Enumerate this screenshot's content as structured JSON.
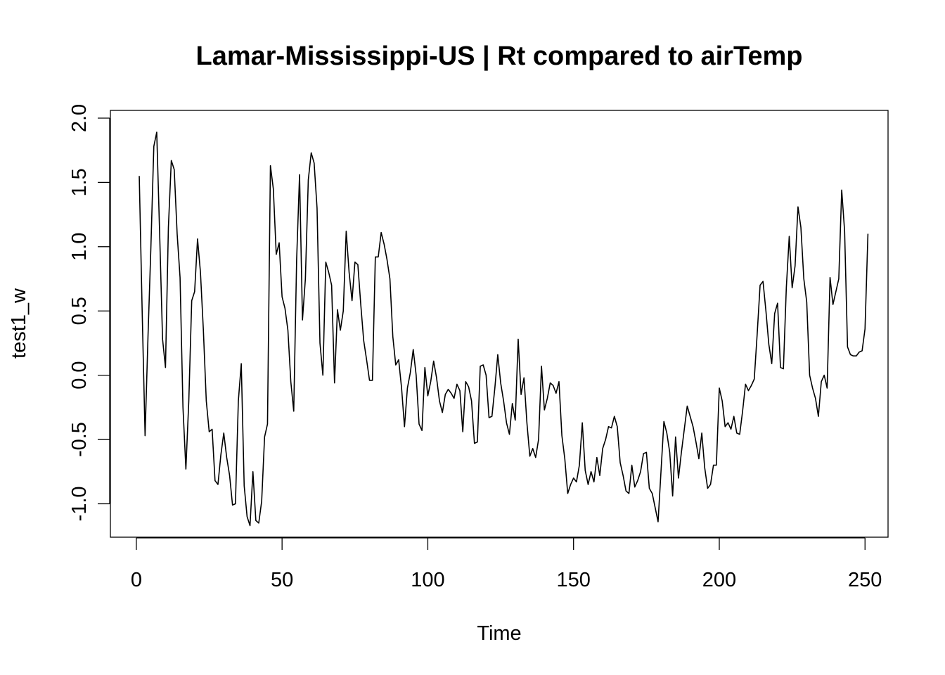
{
  "chart_data": {
    "type": "line",
    "title": "Lamar-Mississippi-US | Rt compared to airTemp",
    "xlabel": "Time",
    "ylabel": "test1_w",
    "xlim": [
      -8.9,
      257.9
    ],
    "ylim": [
      -1.26,
      2.06
    ],
    "x_ticks": [
      0,
      50,
      100,
      150,
      200,
      250
    ],
    "x_tick_labels": [
      "0",
      "50",
      "100",
      "150",
      "200",
      "250"
    ],
    "y_ticks": [
      -1.0,
      -0.5,
      0.0,
      0.5,
      1.0,
      1.5,
      2.0
    ],
    "y_tick_labels": [
      "-1.0",
      "-0.5",
      "0.0",
      "0.5",
      "1.0",
      "1.5",
      "2.0"
    ],
    "grid": false,
    "line_color": "#000000",
    "x_start": 1,
    "series": [
      {
        "values": [
          1.55,
          0.5,
          -0.47,
          0.3,
          1.0,
          1.78,
          1.89,
          1.1,
          0.28,
          0.06,
          1.15,
          1.67,
          1.6,
          1.1,
          0.76,
          -0.25,
          -0.73,
          -0.2,
          0.58,
          0.65,
          1.06,
          0.8,
          0.35,
          -0.2,
          -0.44,
          -0.42,
          -0.82,
          -0.85,
          -0.62,
          -0.45,
          -0.64,
          -0.78,
          -1.01,
          -1.0,
          -0.2,
          0.09,
          -0.86,
          -1.1,
          -1.17,
          -0.75,
          -1.13,
          -1.15,
          -0.98,
          -0.48,
          -0.38,
          1.63,
          1.45,
          0.94,
          1.03,
          0.61,
          0.52,
          0.35,
          -0.05,
          -0.28,
          0.9,
          1.56,
          0.43,
          0.75,
          1.52,
          1.73,
          1.65,
          1.3,
          0.25,
          0.0,
          0.88,
          0.8,
          0.7,
          -0.06,
          0.51,
          0.35,
          0.5,
          1.12,
          0.8,
          0.58,
          0.88,
          0.86,
          0.55,
          0.27,
          0.12,
          -0.04,
          -0.04,
          0.92,
          0.92,
          1.11,
          1.02,
          0.9,
          0.75,
          0.3,
          0.08,
          0.12,
          -0.1,
          -0.4,
          -0.1,
          0.02,
          0.2,
          0.0,
          -0.38,
          -0.43,
          0.06,
          -0.16,
          -0.05,
          0.11,
          -0.02,
          -0.2,
          -0.29,
          -0.15,
          -0.11,
          -0.14,
          -0.18,
          -0.07,
          -0.12,
          -0.44,
          -0.05,
          -0.09,
          -0.2,
          -0.53,
          -0.52,
          0.07,
          0.08,
          0.0,
          -0.33,
          -0.32,
          -0.1,
          0.16,
          -0.06,
          -0.2,
          -0.37,
          -0.46,
          -0.22,
          -0.35,
          0.28,
          -0.15,
          -0.02,
          -0.37,
          -0.63,
          -0.57,
          -0.64,
          -0.5,
          0.07,
          -0.27,
          -0.18,
          -0.06,
          -0.08,
          -0.14,
          -0.05,
          -0.47,
          -0.65,
          -0.92,
          -0.85,
          -0.8,
          -0.83,
          -0.7,
          -0.37,
          -0.74,
          -0.85,
          -0.75,
          -0.83,
          -0.64,
          -0.78,
          -0.57,
          -0.5,
          -0.4,
          -0.41,
          -0.32,
          -0.4,
          -0.68,
          -0.78,
          -0.9,
          -0.92,
          -0.7,
          -0.87,
          -0.82,
          -0.75,
          -0.61,
          -0.6,
          -0.88,
          -0.92,
          -1.03,
          -1.14,
          -0.75,
          -0.36,
          -0.45,
          -0.6,
          -0.94,
          -0.48,
          -0.8,
          -0.6,
          -0.42,
          -0.24,
          -0.32,
          -0.4,
          -0.52,
          -0.65,
          -0.45,
          -0.72,
          -0.88,
          -0.85,
          -0.7,
          -0.7,
          -0.1,
          -0.2,
          -0.4,
          -0.37,
          -0.42,
          -0.32,
          -0.45,
          -0.46,
          -0.28,
          -0.07,
          -0.12,
          -0.08,
          -0.03,
          0.32,
          0.7,
          0.73,
          0.5,
          0.24,
          0.09,
          0.48,
          0.56,
          0.06,
          0.05,
          0.68,
          1.08,
          0.68,
          0.85,
          1.31,
          1.15,
          0.75,
          0.57,
          0.0,
          -0.1,
          -0.18,
          -0.32,
          -0.05,
          0.0,
          -0.1,
          0.76,
          0.55,
          0.65,
          0.75,
          1.44,
          1.12,
          0.22,
          0.16,
          0.15,
          0.15,
          0.18,
          0.19,
          0.36,
          1.1
        ]
      }
    ]
  }
}
